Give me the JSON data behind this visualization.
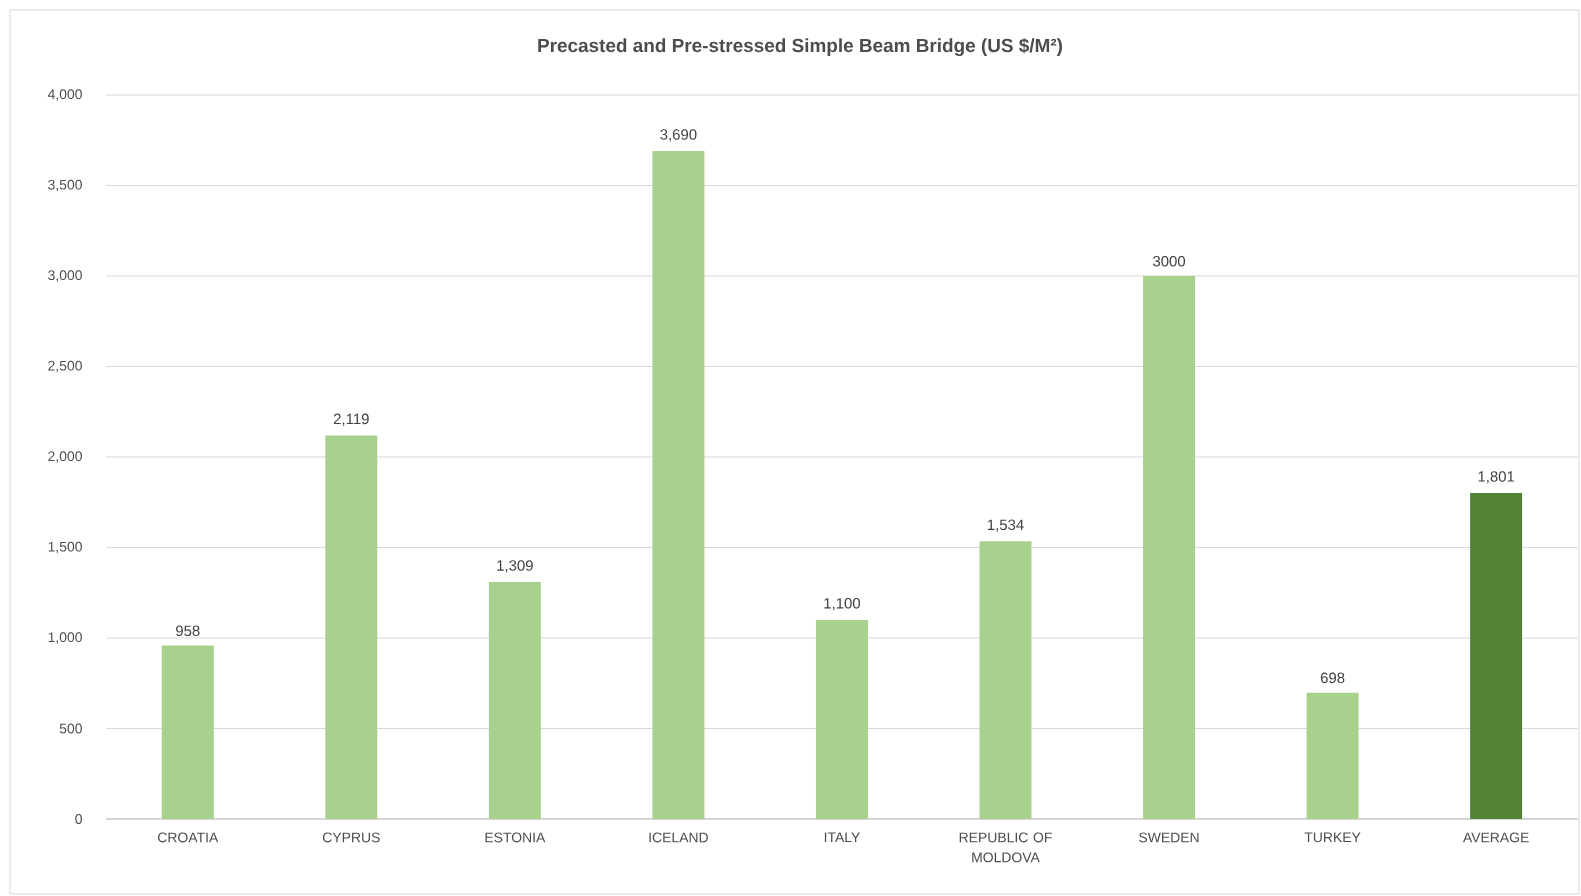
{
  "chart_data": {
    "type": "bar",
    "title": "Precasted and Pre-stressed Simple Beam Bridge (US $/M²)",
    "categories": [
      "CROATIA",
      "CYPRUS",
      "ESTONIA",
      "ICELAND",
      "ITALY",
      "REPUBLIC OF MOLDOVA",
      "SWEDEN",
      "TURKEY",
      "AVERAGE"
    ],
    "values": [
      958,
      2119,
      1309,
      3690,
      1100,
      1534,
      3000,
      698,
      1801
    ],
    "colors": [
      "#a9d18e",
      "#a9d18e",
      "#a9d18e",
      "#a9d18e",
      "#a9d18e",
      "#a9d18e",
      "#a9d18e",
      "#a9d18e",
      "#548235"
    ],
    "value_labels": [
      "958",
      "2,119",
      "1,309",
      "3,690",
      "1,100",
      "1,534",
      "3000",
      "698",
      "1,801"
    ],
    "ylim": [
      0,
      4000
    ],
    "yticks": [
      {
        "value": 0,
        "label": "0"
      },
      {
        "value": 500,
        "label": "500"
      },
      {
        "value": 1000,
        "label": "1,000"
      },
      {
        "value": 1500,
        "label": "1,500"
      },
      {
        "value": 2000,
        "label": "2,000"
      },
      {
        "value": 2500,
        "label": "2,500"
      },
      {
        "value": 3000,
        "label": "3,000"
      },
      {
        "value": 3500,
        "label": "3,500"
      },
      {
        "value": 4000,
        "label": "4,000"
      }
    ],
    "grid": "y"
  }
}
